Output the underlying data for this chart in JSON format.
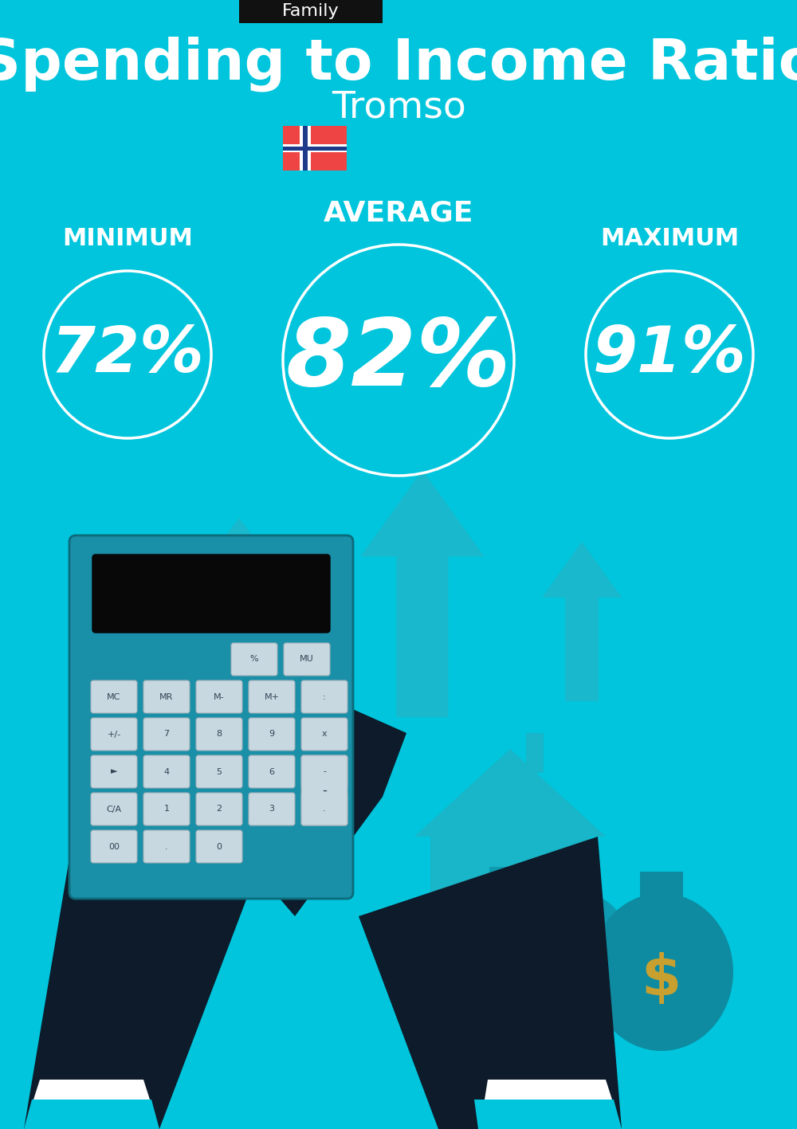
{
  "bg_color": "#00C5DC",
  "tag_bg": "#111111",
  "tag_text": "Family",
  "tag_text_color": "#ffffff",
  "title": "Spending to Income Ratio",
  "subtitle": "Tromso",
  "title_color": "#ffffff",
  "subtitle_color": "#ffffff",
  "avg_label": "AVERAGE",
  "min_label": "MINIMUM",
  "max_label": "MAXIMUM",
  "avg_value": "82%",
  "min_value": "72%",
  "max_value": "91%",
  "label_color": "#ffffff",
  "circle_color": "#ffffff",
  "fig_width": 10.0,
  "fig_height": 14.17,
  "dpi": 100
}
